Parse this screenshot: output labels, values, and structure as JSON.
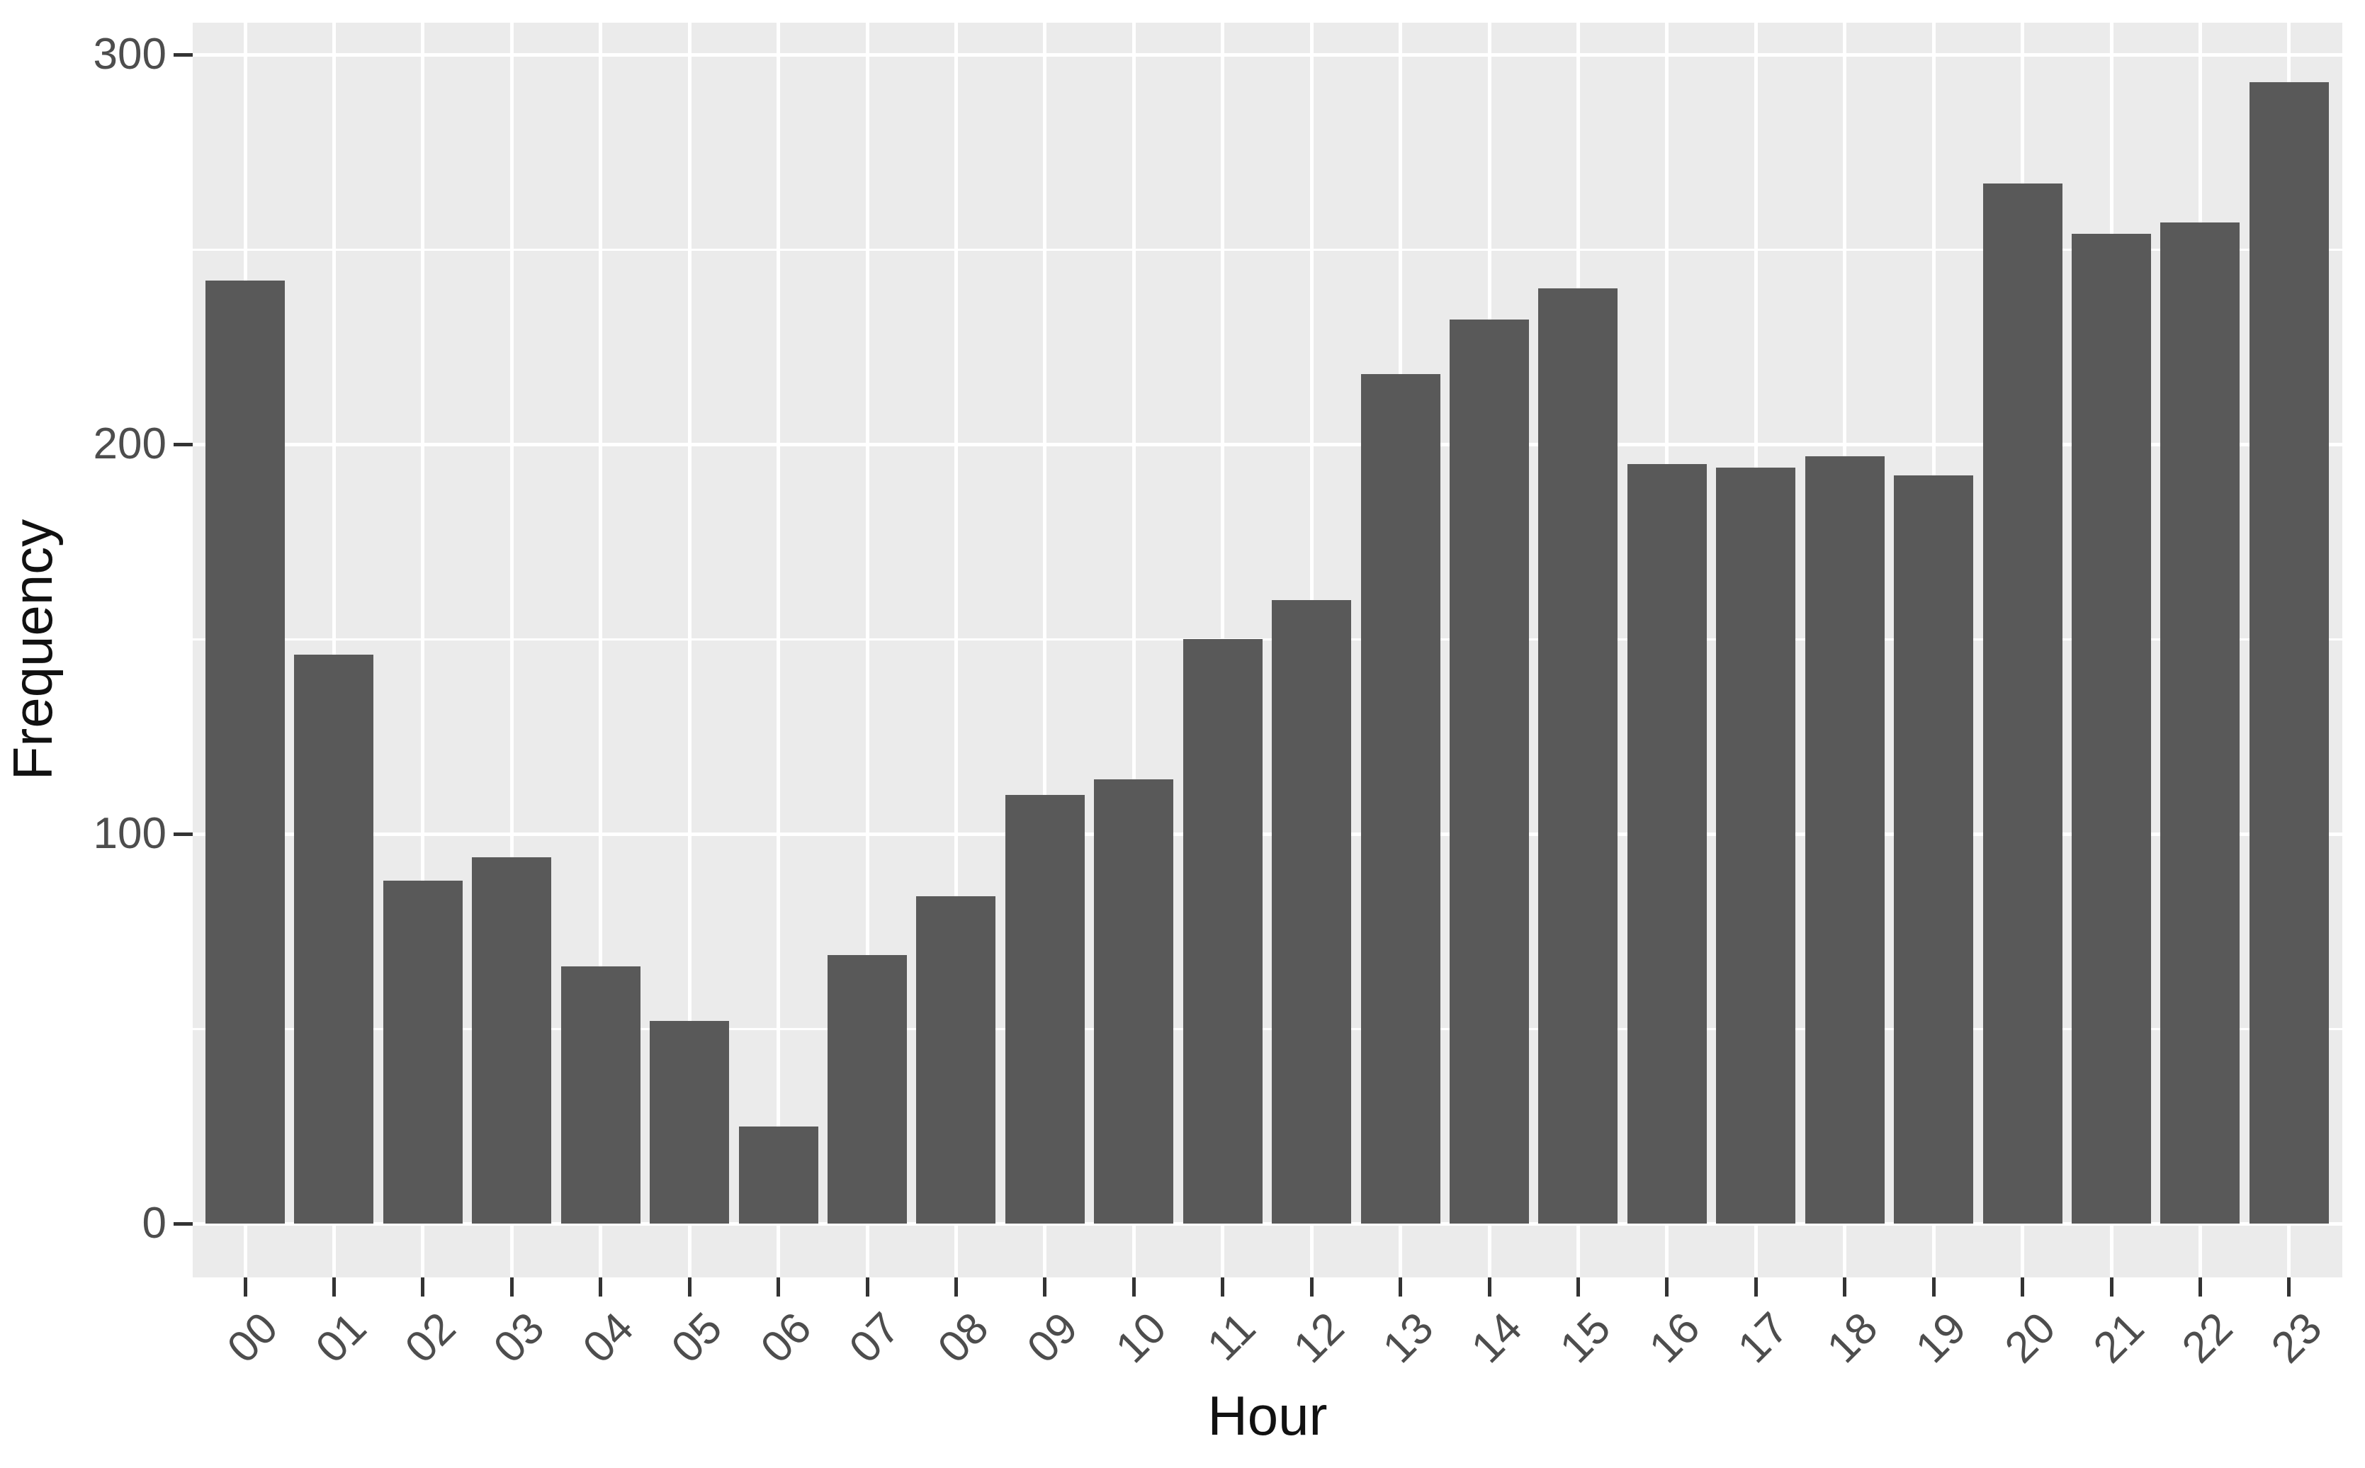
{
  "chart_data": {
    "type": "bar",
    "title": "",
    "xlabel": "Hour",
    "ylabel": "Frequency",
    "categories": [
      "00",
      "01",
      "02",
      "03",
      "04",
      "05",
      "06",
      "07",
      "08",
      "09",
      "10",
      "11",
      "12",
      "13",
      "14",
      "15",
      "16",
      "17",
      "18",
      "19",
      "20",
      "21",
      "22",
      "23"
    ],
    "values": [
      242,
      146,
      88,
      94,
      66,
      52,
      25,
      69,
      84,
      110,
      114,
      150,
      160,
      218,
      232,
      240,
      195,
      194,
      197,
      192,
      267,
      254,
      257,
      293
    ],
    "ylim": [
      0,
      308
    ],
    "y_major_ticks": [
      0,
      100,
      200,
      300
    ],
    "y_minor_gridlines": [
      50,
      150,
      250
    ],
    "grid": true,
    "legend": false,
    "colors": {
      "bar_fill": "#595959",
      "panel_background": "#EBEBEB",
      "gridline": "#FFFFFF",
      "axis_text": "#4D4D4D",
      "axis_title": "#111111",
      "tick_mark": "#333333",
      "page_background": "#FFFFFF"
    }
  }
}
